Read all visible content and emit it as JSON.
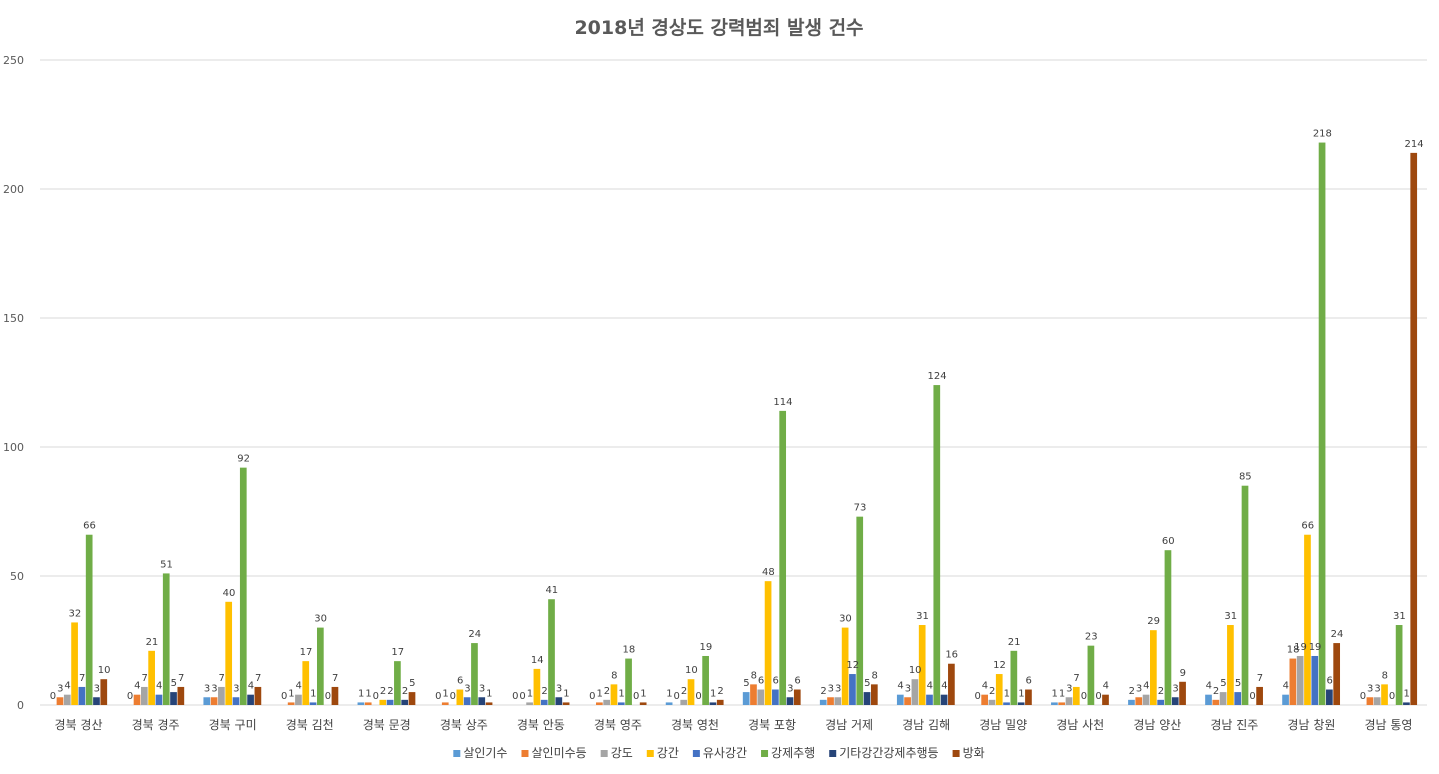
{
  "chart_data": {
    "type": "bar",
    "title": "2018년 경상도 강력범죄 발생 건수",
    "xlabel": "",
    "ylabel": "",
    "ylim": [
      0,
      250
    ],
    "yticks": [
      0,
      50,
      100,
      150,
      200,
      250
    ],
    "grid": true,
    "legend_position": "bottom",
    "categories": [
      "경북 경산",
      "경북 경주",
      "경북 구미",
      "경북 김천",
      "경북 문경",
      "경북 상주",
      "경북 안동",
      "경북 영주",
      "경북 영천",
      "경북 포항",
      "경남 거제",
      "경남 김해",
      "경남 밀양",
      "경남 사천",
      "경남 양산",
      "경남 진주",
      "경남 창원",
      "경남 통영"
    ],
    "series": [
      {
        "name": "살인기수",
        "color": "#5b9bd5",
        "values": [
          0,
          0,
          3,
          0,
          1,
          0,
          0,
          0,
          1,
          5,
          2,
          4,
          0,
          1,
          2,
          4,
          4,
          0
        ]
      },
      {
        "name": "살인미수등",
        "color": "#ed7d31",
        "values": [
          3,
          4,
          3,
          1,
          1,
          1,
          0,
          1,
          0,
          8,
          3,
          3,
          4,
          1,
          3,
          2,
          18,
          3
        ]
      },
      {
        "name": "강도",
        "color": "#a5a5a5",
        "values": [
          4,
          7,
          7,
          4,
          0,
          0,
          1,
          2,
          2,
          6,
          3,
          10,
          2,
          3,
          4,
          5,
          19,
          3
        ]
      },
      {
        "name": "강간",
        "color": "#ffc000",
        "values": [
          32,
          21,
          40,
          17,
          2,
          6,
          14,
          8,
          10,
          48,
          30,
          31,
          12,
          7,
          29,
          31,
          66,
          8
        ]
      },
      {
        "name": "유사강간",
        "color": "#4472c4",
        "values": [
          7,
          4,
          3,
          1,
          2,
          3,
          2,
          1,
          0,
          6,
          12,
          4,
          1,
          0,
          2,
          5,
          19,
          0
        ]
      },
      {
        "name": "강제추행",
        "color": "#70ad47",
        "values": [
          66,
          51,
          92,
          30,
          17,
          24,
          41,
          18,
          19,
          114,
          73,
          124,
          21,
          23,
          60,
          85,
          218,
          31
        ]
      },
      {
        "name": "기타강간강제추행등",
        "color": "#264478",
        "values": [
          3,
          5,
          4,
          0,
          2,
          3,
          3,
          0,
          1,
          3,
          5,
          4,
          1,
          0,
          3,
          0,
          6,
          1
        ]
      },
      {
        "name": "방화",
        "color": "#9e480e",
        "values": [
          10,
          7,
          7,
          7,
          5,
          1,
          1,
          1,
          2,
          6,
          8,
          16,
          6,
          4,
          9,
          7,
          24,
          214
        ]
      }
    ]
  }
}
